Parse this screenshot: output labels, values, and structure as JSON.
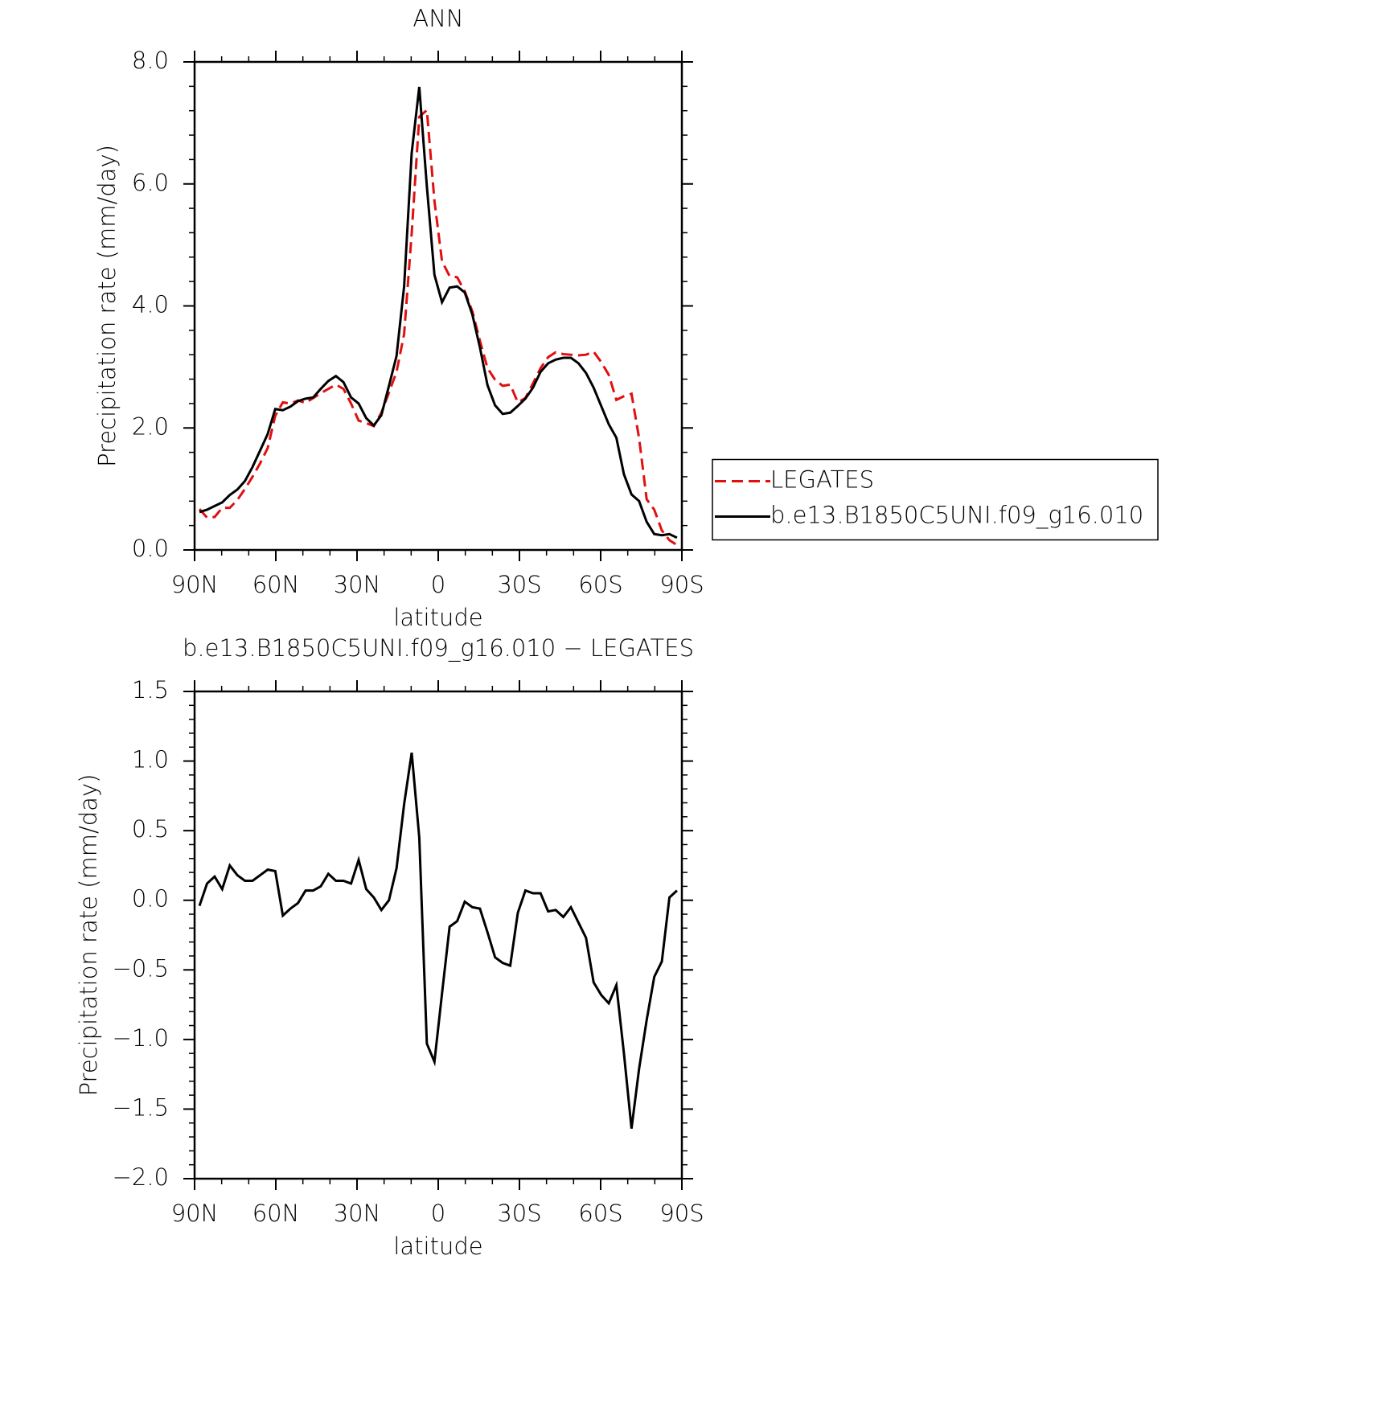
{
  "chart_data": [
    {
      "type": "line",
      "title": "ANN",
      "xlabel": "latitude",
      "ylabel": "Precipitation rate (mm/day)",
      "x": [
        88.2,
        85.4,
        82.6,
        79.8,
        77,
        74.2,
        71.4,
        68.6,
        65.8,
        63,
        60.2,
        57.4,
        54.6,
        51.8,
        49,
        46.2,
        43.4,
        40.6,
        37.8,
        35,
        32.2,
        29.4,
        26.6,
        23.8,
        21,
        18.2,
        15.4,
        12.6,
        9.8,
        7,
        4.2,
        1.4,
        -1.4,
        -4.2,
        -7,
        -9.8,
        -12.6,
        -15.4,
        -18.2,
        -21,
        -23.8,
        -26.6,
        -29.4,
        -32.2,
        -35,
        -37.8,
        -40.6,
        -43.4,
        -46.2,
        -49,
        -51.8,
        -54.6,
        -57.4,
        -60.2,
        -63,
        -65.8,
        -68.6,
        -71.4,
        -74.2,
        -77,
        -79.8,
        -82.6,
        -85.4,
        -88.2
      ],
      "xlim": [
        90,
        -90
      ],
      "xticks": [
        {
          "value": 90,
          "label": "90N"
        },
        {
          "value": 60,
          "label": "60N"
        },
        {
          "value": 30,
          "label": "30N"
        },
        0,
        {
          "value": -30,
          "label": "30S"
        },
        {
          "value": -60,
          "label": "60S"
        },
        {
          "value": -90,
          "label": "90S"
        }
      ],
      "ylim": [
        0,
        8
      ],
      "yticks": [
        {
          "value": 0,
          "label": "0.0"
        },
        {
          "value": 2,
          "label": "2.0"
        },
        {
          "value": 4,
          "label": "4.0"
        },
        {
          "value": 6,
          "label": "6.0"
        },
        {
          "value": 8,
          "label": "8.0"
        }
      ],
      "legend": "right",
      "series": [
        {
          "name": "LEGATES",
          "color": "#e01010",
          "linestyle": "dashed",
          "values": [
            0.67,
            0.53,
            0.54,
            0.69,
            0.69,
            0.82,
            1.0,
            1.2,
            1.42,
            1.67,
            2.2,
            2.42,
            2.4,
            2.45,
            2.41,
            2.49,
            2.57,
            2.64,
            2.71,
            2.64,
            2.4,
            2.12,
            2.08,
            2.03,
            2.25,
            2.58,
            2.92,
            3.54,
            5.19,
            7.1,
            7.21,
            5.72,
            4.73,
            4.49,
            4.47,
            4.24,
            3.91,
            3.43,
            2.98,
            2.79,
            2.69,
            2.71,
            2.42,
            2.49,
            2.73,
            2.98,
            3.16,
            3.24,
            3.21,
            3.2,
            3.19,
            3.2,
            3.25,
            3.08,
            2.87,
            2.46,
            2.52,
            2.56,
            1.83,
            0.83,
            0.66,
            0.32,
            0.16,
            0.08
          ]
        },
        {
          "name": "b.e13.B1850C5UNI.f09_g16.010",
          "color": "#000000",
          "linestyle": "solid",
          "values": [
            0.62,
            0.66,
            0.72,
            0.78,
            0.9,
            0.99,
            1.13,
            1.36,
            1.63,
            1.9,
            2.31,
            2.29,
            2.35,
            2.44,
            2.48,
            2.5,
            2.64,
            2.77,
            2.85,
            2.75,
            2.5,
            2.4,
            2.16,
            2.04,
            2.21,
            2.69,
            3.18,
            4.32,
            6.51,
            7.59,
            5.96,
            4.51,
            4.06,
            4.3,
            4.32,
            4.22,
            3.86,
            3.32,
            2.7,
            2.37,
            2.23,
            2.25,
            2.36,
            2.48,
            2.66,
            2.92,
            3.06,
            3.12,
            3.15,
            3.15,
            3.06,
            2.9,
            2.66,
            2.36,
            2.06,
            1.84,
            1.24,
            0.91,
            0.8,
            0.46,
            0.26,
            0.24,
            0.26,
            0.2
          ]
        }
      ]
    },
    {
      "type": "line",
      "title": "b.e13.B1850C5UNI.f09_g16.010 − LEGATES",
      "xlabel": "latitude",
      "ylabel": "Precipitation rate (mm/day)",
      "x": [
        88.2,
        85.4,
        82.6,
        79.8,
        77,
        74.2,
        71.4,
        68.6,
        65.8,
        63,
        60.2,
        57.4,
        54.6,
        51.8,
        49,
        46.2,
        43.4,
        40.6,
        37.8,
        35,
        32.2,
        29.4,
        26.6,
        23.8,
        21,
        18.2,
        15.4,
        12.6,
        9.8,
        7,
        4.2,
        1.4,
        -1.4,
        -4.2,
        -7,
        -9.8,
        -12.6,
        -15.4,
        -18.2,
        -21,
        -23.8,
        -26.6,
        -29.4,
        -32.2,
        -35,
        -37.8,
        -40.6,
        -43.4,
        -46.2,
        -49,
        -51.8,
        -54.6,
        -57.4,
        -60.2,
        -63,
        -65.8,
        -68.6,
        -71.4,
        -74.2,
        -77,
        -79.8,
        -82.6,
        -85.4,
        -88.2
      ],
      "xlim": [
        90,
        -90
      ],
      "xticks": [
        {
          "value": 90,
          "label": "90N"
        },
        {
          "value": 60,
          "label": "60N"
        },
        {
          "value": 30,
          "label": "30N"
        },
        0,
        {
          "value": -30,
          "label": "30S"
        },
        {
          "value": -60,
          "label": "60S"
        },
        {
          "value": -90,
          "label": "90S"
        }
      ],
      "ylim": [
        -2,
        1.5
      ],
      "yticks": [
        {
          "value": -2,
          "label": "−2.0"
        },
        {
          "value": -1.5,
          "label": "−1.5"
        },
        {
          "value": -1,
          "label": "−1.0"
        },
        {
          "value": -0.5,
          "label": "−0.5"
        },
        {
          "value": 0,
          "label": "0.0"
        },
        {
          "value": 0.5,
          "label": "0.5"
        },
        {
          "value": 1,
          "label": "1.0"
        },
        1.5
      ],
      "series": [
        {
          "color": "#000000",
          "linestyle": "solid",
          "values": [
            -0.04,
            0.12,
            0.17,
            0.08,
            0.25,
            0.18,
            0.14,
            0.14,
            0.18,
            0.22,
            0.21,
            -0.11,
            -0.06,
            -0.02,
            0.07,
            0.07,
            0.1,
            0.19,
            0.14,
            0.14,
            0.12,
            0.29,
            0.08,
            0.02,
            -0.07,
            0.0,
            0.23,
            0.69,
            1.06,
            0.45,
            -1.03,
            -1.16,
            -0.67,
            -0.19,
            -0.15,
            -0.01,
            -0.05,
            -0.06,
            -0.23,
            -0.41,
            -0.45,
            -0.47,
            -0.09,
            0.07,
            0.05,
            0.05,
            -0.08,
            -0.07,
            -0.12,
            -0.05,
            -0.16,
            -0.27,
            -0.59,
            -0.68,
            -0.74,
            -0.61,
            -1.1,
            -1.64,
            -1.21,
            -0.86,
            -0.55,
            -0.44,
            0.02,
            0.07
          ]
        }
      ]
    }
  ]
}
